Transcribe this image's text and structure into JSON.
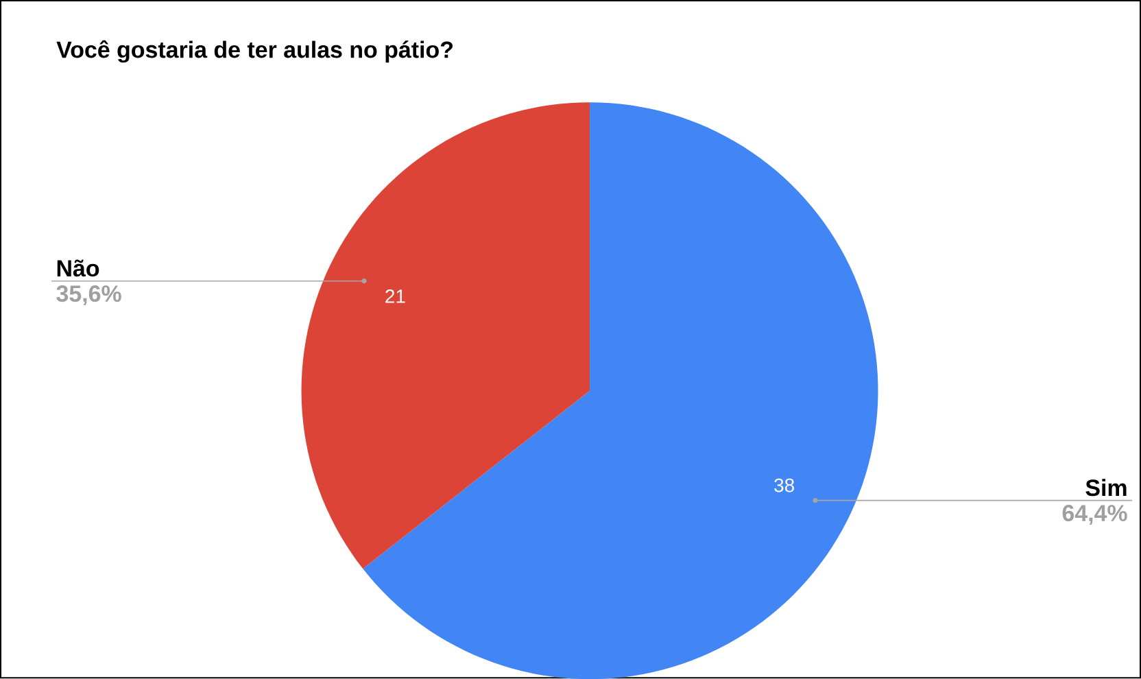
{
  "chart_data": {
    "type": "pie",
    "title": "Você gostaria de ter aulas no pátio?",
    "categories": [
      "Sim",
      "Não"
    ],
    "values": [
      38,
      21
    ],
    "colors": [
      "#4285f4",
      "#db4437"
    ],
    "value_labels": [
      "38",
      "21"
    ],
    "annotations": [
      "64,4%",
      "35,6%"
    ]
  }
}
